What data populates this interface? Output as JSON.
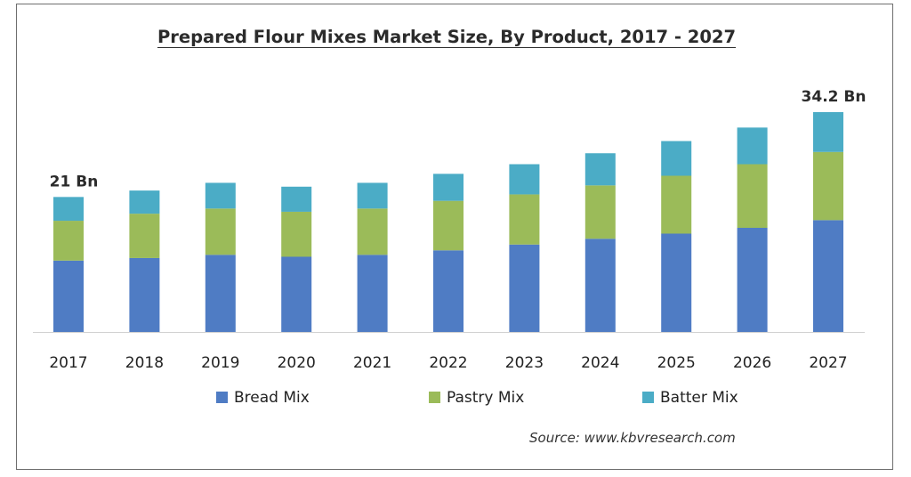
{
  "title": "Prepared Flour Mixes Market Size, By Product, 2017 - 2027",
  "source": "Source:  www.kbvresearch.com",
  "chart_data": {
    "type": "bar",
    "stacked": true,
    "title": "Prepared Flour Mixes Market Size, By Product, 2017 - 2027",
    "xlabel": "",
    "ylabel": "",
    "categories": [
      "2017",
      "2018",
      "2019",
      "2020",
      "2021",
      "2022",
      "2023",
      "2024",
      "2025",
      "2026",
      "2027"
    ],
    "series": [
      {
        "name": "Bread Mix",
        "color": "#4f7cc4",
        "values": [
          11.1,
          11.5,
          12.0,
          11.7,
          12.0,
          12.7,
          13.6,
          14.5,
          15.3,
          16.2,
          17.4
        ]
      },
      {
        "name": "Pastry Mix",
        "color": "#9bbb59",
        "values": [
          6.2,
          6.9,
          7.2,
          7.0,
          7.2,
          7.7,
          7.8,
          8.3,
          9.0,
          9.9,
          10.6
        ]
      },
      {
        "name": "Batter Mix",
        "color": "#4bacc6",
        "values": [
          3.7,
          3.6,
          4.0,
          3.9,
          4.0,
          4.2,
          4.7,
          5.0,
          5.4,
          5.7,
          6.2
        ]
      }
    ],
    "ylim": [
      0,
      36
    ],
    "grid": false,
    "legend": "bottom",
    "annotations": [
      {
        "category": "2017",
        "text": "21 Bn"
      },
      {
        "category": "2027",
        "text": "34.2 Bn"
      }
    ]
  }
}
